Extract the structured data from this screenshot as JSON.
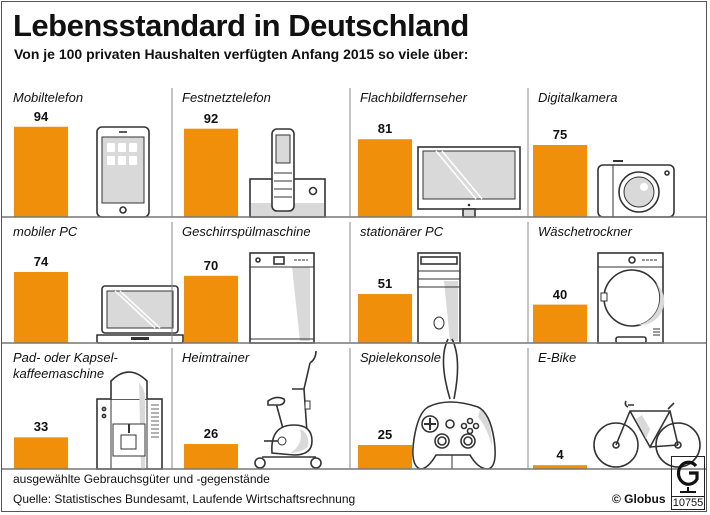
{
  "title": "Lebensstandard in Deutschland",
  "subtitle": "Von je 100 privaten Haushalten verfügten Anfang 2015 so viele über:",
  "footer": {
    "note": "ausgewählte Gebrauchsgüter und -gegenstände",
    "source": "Quelle: Statistisches Bundesamt, Laufende Wirtschaftsrechnung",
    "credit": "© Globus",
    "logo_number": "10755",
    "logo_letter": "G"
  },
  "colors": {
    "bar": "#f0900a",
    "icon_fill": "#d9d9d9",
    "line": "#333333"
  },
  "chart_data": {
    "type": "bar",
    "title": "Lebensstandard in Deutschland",
    "subtitle": "Von je 100 privaten Haushalten verfügten Anfang 2015 so viele über:",
    "ylim": [
      0,
      100
    ],
    "layout": "small multiples 4x3",
    "categories": [
      "Mobiltelefon",
      "Festnetztelefon",
      "Flachbildfernseher",
      "Digitalkamera",
      "mobiler PC",
      "Geschirrspülmaschine",
      "stationärer PC",
      "Wäschetrockner",
      "Pad- oder Kapsel-\nkaffeemaschine",
      "Heimtrainer",
      "Spielekonsole",
      "E-Bike"
    ],
    "values": [
      94,
      92,
      81,
      75,
      74,
      70,
      51,
      40,
      33,
      26,
      25,
      4
    ],
    "icons": [
      "smartphone-icon",
      "landline-phone-icon",
      "flatscreen-tv-icon",
      "digital-camera-icon",
      "laptop-icon",
      "dishwasher-icon",
      "desktop-tower-icon",
      "dryer-icon",
      "coffee-machine-icon",
      "exercise-bike-icon",
      "game-controller-icon",
      "e-bike-icon"
    ]
  }
}
